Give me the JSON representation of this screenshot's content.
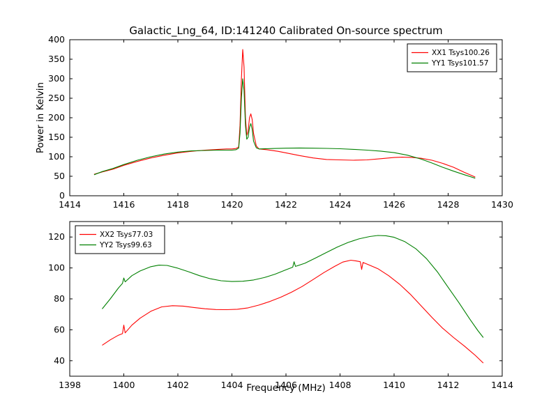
{
  "figure": {
    "background": "#ffffff",
    "axis_color": "#000000"
  },
  "chart_data": [
    {
      "type": "line",
      "title": "Galactic_Lng_64, ID:141240 Calibrated On-source spectrum",
      "xlabel": "",
      "ylabel": "Power in Kelvin",
      "xlim": [
        1414,
        1430
      ],
      "ylim": [
        0,
        400
      ],
      "xticks": [
        1414,
        1416,
        1418,
        1420,
        1422,
        1424,
        1426,
        1428,
        1430
      ],
      "yticks": [
        0,
        50,
        100,
        150,
        200,
        250,
        300,
        350,
        400
      ],
      "grid": false,
      "legend_position": "upper right",
      "series": [
        {
          "name": "XX1 Tsys100.26",
          "color": "#ff0000",
          "points": [
            [
              1414.9,
              55
            ],
            [
              1415.2,
              61
            ],
            [
              1415.6,
              68
            ],
            [
              1416,
              78
            ],
            [
              1416.5,
              88
            ],
            [
              1417,
              97
            ],
            [
              1417.5,
              104
            ],
            [
              1418,
              110
            ],
            [
              1418.5,
              114
            ],
            [
              1419,
              117
            ],
            [
              1419.5,
              119
            ],
            [
              1419.8,
              120
            ],
            [
              1420.0,
              120
            ],
            [
              1420.15,
              121
            ],
            [
              1420.25,
              125
            ],
            [
              1420.3,
              180
            ],
            [
              1420.35,
              300
            ],
            [
              1420.4,
              375
            ],
            [
              1420.45,
              330
            ],
            [
              1420.5,
              200
            ],
            [
              1420.55,
              155
            ],
            [
              1420.6,
              165
            ],
            [
              1420.65,
              200
            ],
            [
              1420.7,
              210
            ],
            [
              1420.75,
              195
            ],
            [
              1420.8,
              160
            ],
            [
              1420.9,
              128
            ],
            [
              1421,
              120
            ],
            [
              1421.3,
              118
            ],
            [
              1421.7,
              114
            ],
            [
              1422,
              110
            ],
            [
              1422.5,
              103
            ],
            [
              1423,
              97
            ],
            [
              1423.5,
              93
            ],
            [
              1424,
              92
            ],
            [
              1424.5,
              91
            ],
            [
              1425,
              92
            ],
            [
              1425.5,
              95
            ],
            [
              1426,
              98
            ],
            [
              1426.3,
              99
            ],
            [
              1426.7,
              98
            ],
            [
              1427,
              96
            ],
            [
              1427.4,
              91
            ],
            [
              1427.8,
              83
            ],
            [
              1428.2,
              73
            ],
            [
              1428.6,
              60
            ],
            [
              1429,
              48
            ]
          ]
        },
        {
          "name": "YY1 Tsys101.57",
          "color": "#008000",
          "points": [
            [
              1414.9,
              54
            ],
            [
              1415.2,
              62
            ],
            [
              1415.6,
              70
            ],
            [
              1416,
              80
            ],
            [
              1416.5,
              91
            ],
            [
              1417,
              100
            ],
            [
              1417.5,
              107
            ],
            [
              1418,
              112
            ],
            [
              1418.5,
              115
            ],
            [
              1419,
              116
            ],
            [
              1419.5,
              117
            ],
            [
              1420.0,
              117
            ],
            [
              1420.15,
              118
            ],
            [
              1420.25,
              122
            ],
            [
              1420.3,
              160
            ],
            [
              1420.35,
              250
            ],
            [
              1420.4,
              300
            ],
            [
              1420.45,
              270
            ],
            [
              1420.5,
              180
            ],
            [
              1420.55,
              145
            ],
            [
              1420.6,
              150
            ],
            [
              1420.65,
              175
            ],
            [
              1420.7,
              185
            ],
            [
              1420.75,
              170
            ],
            [
              1420.8,
              140
            ],
            [
              1420.9,
              123
            ],
            [
              1421,
              120
            ],
            [
              1421.5,
              121
            ],
            [
              1422,
              122
            ],
            [
              1422.5,
              122.5
            ],
            [
              1423,
              122
            ],
            [
              1423.5,
              121.5
            ],
            [
              1424,
              120.5
            ],
            [
              1424.5,
              119
            ],
            [
              1425,
              117
            ],
            [
              1425.5,
              114.5
            ],
            [
              1426,
              110.5
            ],
            [
              1426.5,
              104
            ],
            [
              1427,
              94
            ],
            [
              1427.4,
              84
            ],
            [
              1427.8,
              73
            ],
            [
              1428.2,
              63
            ],
            [
              1428.6,
              54
            ],
            [
              1429,
              45
            ]
          ]
        }
      ]
    },
    {
      "type": "line",
      "title": "",
      "xlabel": "Frequency (MHz)",
      "ylabel": "",
      "xlim": [
        1398,
        1414
      ],
      "ylim": [
        30,
        130
      ],
      "xticks": [
        1398,
        1400,
        1402,
        1404,
        1406,
        1408,
        1410,
        1412,
        1414
      ],
      "yticks": [
        40,
        60,
        80,
        100,
        120
      ],
      "grid": false,
      "legend_position": "upper left",
      "series": [
        {
          "name": "XX2 Tsys77.03",
          "color": "#ff0000",
          "points": [
            [
              1399.2,
              50
            ],
            [
              1399.5,
              53.5
            ],
            [
              1399.8,
              56.5
            ],
            [
              1399.95,
              57.5
            ],
            [
              1400.0,
              63
            ],
            [
              1400.05,
              58
            ],
            [
              1400.3,
              63
            ],
            [
              1400.6,
              67.5
            ],
            [
              1401,
              72
            ],
            [
              1401.4,
              74.8
            ],
            [
              1401.8,
              75.6
            ],
            [
              1402.2,
              75.3
            ],
            [
              1402.6,
              74.4
            ],
            [
              1403,
              73.6
            ],
            [
              1403.4,
              73.1
            ],
            [
              1403.8,
              73
            ],
            [
              1404.2,
              73.3
            ],
            [
              1404.6,
              74.2
            ],
            [
              1405,
              76
            ],
            [
              1405.4,
              78.3
            ],
            [
              1405.8,
              81
            ],
            [
              1406.2,
              84.3
            ],
            [
              1406.6,
              88
            ],
            [
              1407,
              92.5
            ],
            [
              1407.4,
              97
            ],
            [
              1407.8,
              101
            ],
            [
              1408.1,
              103.8
            ],
            [
              1408.4,
              105
            ],
            [
              1408.6,
              104.5
            ],
            [
              1408.75,
              104
            ],
            [
              1408.8,
              99
            ],
            [
              1408.85,
              103.5
            ],
            [
              1409,
              102.5
            ],
            [
              1409.4,
              99.5
            ],
            [
              1409.8,
              95
            ],
            [
              1410.2,
              89.5
            ],
            [
              1410.6,
              83
            ],
            [
              1411,
              75.5
            ],
            [
              1411.4,
              68
            ],
            [
              1411.8,
              61
            ],
            [
              1412.2,
              55
            ],
            [
              1412.6,
              49.5
            ],
            [
              1413,
              43.5
            ],
            [
              1413.3,
              38.5
            ]
          ]
        },
        {
          "name": "YY2 Tsys99.63",
          "color": "#008000",
          "points": [
            [
              1399.2,
              73.5
            ],
            [
              1399.5,
              80
            ],
            [
              1399.8,
              87
            ],
            [
              1399.95,
              90
            ],
            [
              1400.0,
              93.5
            ],
            [
              1400.05,
              91
            ],
            [
              1400.3,
              95
            ],
            [
              1400.6,
              98
            ],
            [
              1401,
              100.8
            ],
            [
              1401.3,
              101.8
            ],
            [
              1401.6,
              101.6
            ],
            [
              1402,
              99.8
            ],
            [
              1402.4,
              97.5
            ],
            [
              1402.8,
              95
            ],
            [
              1403.2,
              93
            ],
            [
              1403.6,
              91.7
            ],
            [
              1404,
              91.2
            ],
            [
              1404.4,
              91.4
            ],
            [
              1404.8,
              92.2
            ],
            [
              1405.2,
              93.8
            ],
            [
              1405.6,
              96
            ],
            [
              1406,
              98.8
            ],
            [
              1406.25,
              100.5
            ],
            [
              1406.3,
              104
            ],
            [
              1406.35,
              101
            ],
            [
              1406.7,
              103
            ],
            [
              1407.1,
              106.5
            ],
            [
              1407.5,
              110
            ],
            [
              1407.9,
              113.5
            ],
            [
              1408.3,
              116.5
            ],
            [
              1408.7,
              118.8
            ],
            [
              1409.1,
              120.3
            ],
            [
              1409.4,
              121
            ],
            [
              1409.7,
              120.8
            ],
            [
              1410,
              119.8
            ],
            [
              1410.4,
              117
            ],
            [
              1410.8,
              112.5
            ],
            [
              1411.2,
              106
            ],
            [
              1411.6,
              97.5
            ],
            [
              1412,
              87.5
            ],
            [
              1412.4,
              77.5
            ],
            [
              1412.8,
              67
            ],
            [
              1413.1,
              59.5
            ],
            [
              1413.3,
              55
            ]
          ]
        }
      ]
    }
  ]
}
